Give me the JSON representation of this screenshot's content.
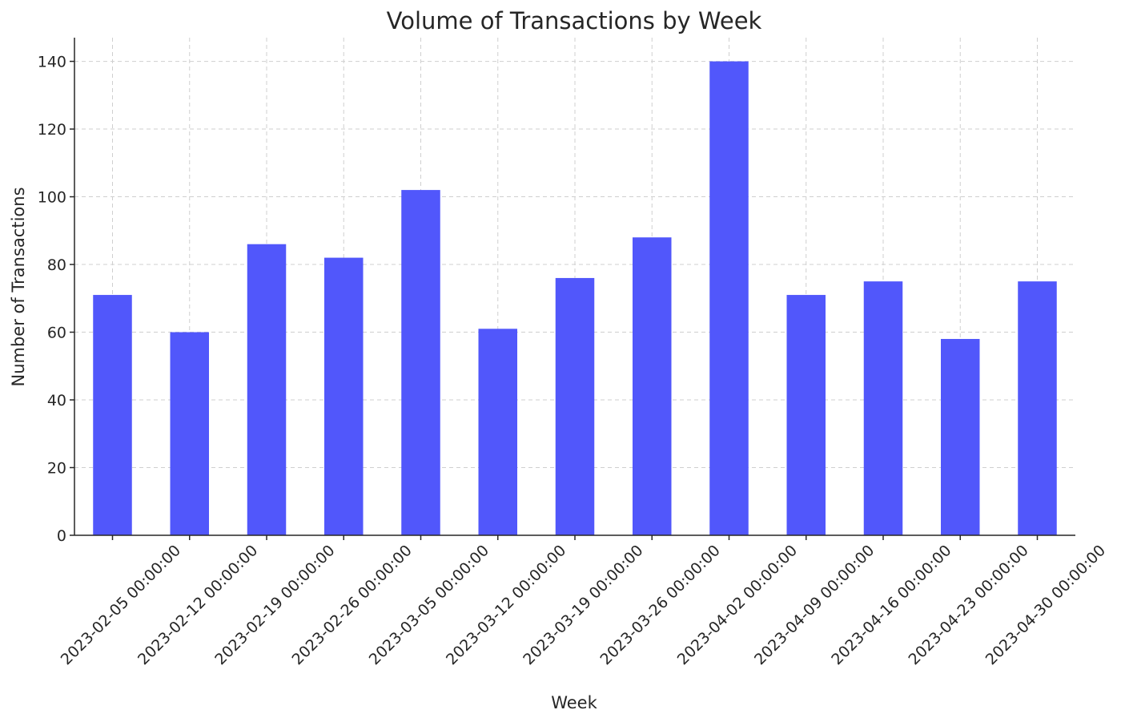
{
  "chart_data": {
    "type": "bar",
    "title": "Volume of Transactions by Week",
    "xlabel": "Week",
    "ylabel": "Number of Transactions",
    "categories": [
      "2023-02-05 00:00:00",
      "2023-02-12 00:00:00",
      "2023-02-19 00:00:00",
      "2023-02-26 00:00:00",
      "2023-03-05 00:00:00",
      "2023-03-12 00:00:00",
      "2023-03-19 00:00:00",
      "2023-03-26 00:00:00",
      "2023-04-02 00:00:00",
      "2023-04-09 00:00:00",
      "2023-04-16 00:00:00",
      "2023-04-23 00:00:00",
      "2023-04-30 00:00:00"
    ],
    "values": [
      71,
      60,
      86,
      82,
      102,
      61,
      76,
      88,
      140,
      71,
      75,
      58,
      75
    ],
    "ylim": [
      0,
      147
    ],
    "yticks": [
      0,
      20,
      40,
      60,
      80,
      100,
      120,
      140
    ],
    "grid": true,
    "bar_color": "#5157fb"
  }
}
